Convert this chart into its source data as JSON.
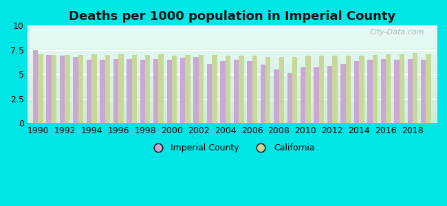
{
  "title": "Deaths per 1000 population in Imperial County",
  "years": [
    1990,
    1991,
    1992,
    1993,
    1994,
    1995,
    1996,
    1997,
    1998,
    1999,
    2000,
    2001,
    2002,
    2003,
    2004,
    2005,
    2006,
    2007,
    2008,
    2009,
    2010,
    2011,
    2012,
    2013,
    2014,
    2015,
    2016,
    2017,
    2018,
    2019
  ],
  "imperial_county": [
    7.5,
    7.0,
    6.9,
    6.8,
    6.5,
    6.5,
    6.6,
    6.6,
    6.5,
    6.6,
    6.5,
    6.7,
    6.8,
    6.1,
    6.4,
    6.5,
    6.4,
    6.0,
    5.5,
    5.2,
    5.7,
    5.7,
    5.9,
    6.1,
    6.4,
    6.5,
    6.6,
    6.5,
    6.6,
    6.5
  ],
  "california": [
    7.1,
    7.0,
    7.0,
    7.0,
    7.1,
    7.0,
    7.1,
    7.0,
    7.0,
    7.1,
    6.9,
    7.0,
    7.0,
    7.0,
    6.9,
    6.9,
    6.9,
    6.8,
    6.8,
    6.8,
    6.9,
    6.9,
    6.9,
    6.9,
    6.9,
    7.0,
    7.1,
    7.1,
    7.2,
    7.1
  ],
  "imperial_color": "#c9a8d4",
  "california_color": "#c8d89a",
  "background_outer": "#00e5e5",
  "grad_top": "#e8faf8",
  "grad_bottom": "#d0edd8",
  "title_fontsize": 13,
  "ylim": [
    0,
    10
  ],
  "yticks": [
    0,
    2.5,
    5,
    7.5,
    10
  ],
  "bar_width": 0.38,
  "legend_imperial": "Imperial County",
  "legend_california": "California"
}
